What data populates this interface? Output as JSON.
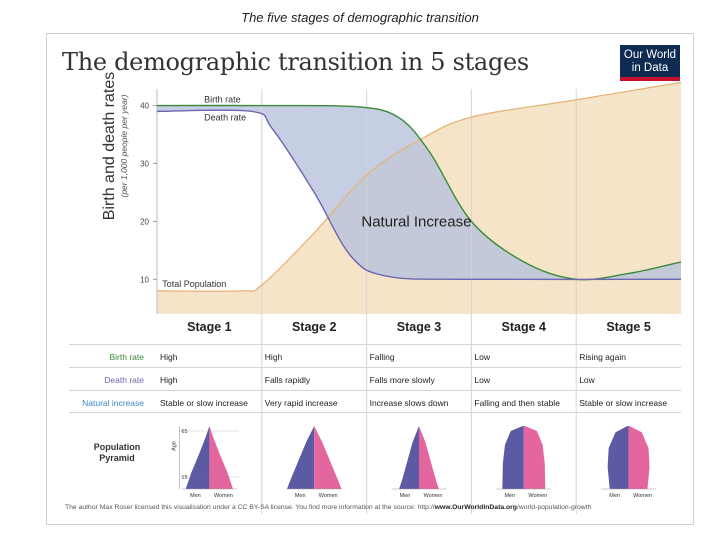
{
  "caption": "The five stages of demographic transition",
  "title": "The demographic transition in 5 stages",
  "logo": {
    "line1": "Our World",
    "line2": "in Data",
    "bg": "#0e2b52",
    "accent": "#c8102e"
  },
  "y_axis": {
    "title": "Birth and death rates",
    "subtitle": "(per 1,000 people per year)"
  },
  "chart_labels": {
    "birth_rate": "Birth rate",
    "death_rate": "Death rate",
    "population": "Total Population",
    "natural_increase": "Natural Increase"
  },
  "colors": {
    "birth": "#3b8a3b",
    "death": "#6a66b0",
    "population_fill": "#f6e4c9",
    "population_line": "#e4b47a",
    "increase_fill": "#b7c2dc",
    "men": "#5b5aa3",
    "women": "#e4669f"
  },
  "chart_data": {
    "type": "line",
    "title": "The demographic transition in 5 stages",
    "ylabel": "Birth and death rates (per 1,000 people per year)",
    "y_ticks": [
      10,
      20,
      30,
      40
    ],
    "ylim": [
      4,
      42
    ],
    "x_categories": [
      "Stage 1",
      "Stage 2",
      "Stage 3",
      "Stage 4",
      "Stage 5"
    ],
    "series": [
      {
        "name": "Birth rate",
        "values": [
          {
            "x": 0.0,
            "y": 40
          },
          {
            "x": 1.0,
            "y": 40
          },
          {
            "x": 1.9,
            "y": 39.8
          },
          {
            "x": 2.3,
            "y": 38
          },
          {
            "x": 2.6,
            "y": 32
          },
          {
            "x": 3.0,
            "y": 20
          },
          {
            "x": 3.5,
            "y": 13
          },
          {
            "x": 4.0,
            "y": 10
          },
          {
            "x": 4.5,
            "y": 11
          },
          {
            "x": 5.0,
            "y": 13
          }
        ]
      },
      {
        "name": "Death rate",
        "values": [
          {
            "x": 0.0,
            "y": 39
          },
          {
            "x": 0.9,
            "y": 39
          },
          {
            "x": 1.1,
            "y": 36
          },
          {
            "x": 1.5,
            "y": 25
          },
          {
            "x": 1.85,
            "y": 14
          },
          {
            "x": 2.2,
            "y": 10.5
          },
          {
            "x": 3.0,
            "y": 10
          },
          {
            "x": 5.0,
            "y": 10
          }
        ]
      },
      {
        "name": "Total Population",
        "values": [
          {
            "x": 0.0,
            "y": 8
          },
          {
            "x": 0.8,
            "y": 8
          },
          {
            "x": 1.0,
            "y": 9
          },
          {
            "x": 1.5,
            "y": 18
          },
          {
            "x": 2.0,
            "y": 28
          },
          {
            "x": 2.5,
            "y": 34
          },
          {
            "x": 3.0,
            "y": 38
          },
          {
            "x": 4.0,
            "y": 41
          },
          {
            "x": 5.0,
            "y": 44
          }
        ]
      }
    ],
    "annotations": [
      "Birth rate",
      "Death rate",
      "Total Population",
      "Natural Increase"
    ]
  },
  "stages": [
    {
      "name": "Stage 1",
      "birth": "High",
      "death": "High",
      "increase": "Stable or slow increase",
      "pyramid": "triangle"
    },
    {
      "name": "Stage 2",
      "birth": "High",
      "death": "Falls rapidly",
      "increase": "Very rapid increase",
      "pyramid": "wide-triangle"
    },
    {
      "name": "Stage 3",
      "birth": "Falling",
      "death": "Falls more slowly",
      "increase": "Increase slows down",
      "pyramid": "narrow-triangle"
    },
    {
      "name": "Stage 4",
      "birth": "Low",
      "death": "Low",
      "increase": "Falling and then stable",
      "pyramid": "dome"
    },
    {
      "name": "Stage 5",
      "birth": "Rising again",
      "death": "Low",
      "increase": "Stable or slow increase",
      "pyramid": "bell"
    }
  ],
  "row_labels": {
    "birth": "Birth rate",
    "death": "Death rate",
    "increase": "Natural increase"
  },
  "pyramid": {
    "label_line1": "Population",
    "label_line2": "Pyramid",
    "men": "Men",
    "women": "Women",
    "age": "Age",
    "age_65": "65",
    "age_15": "15"
  },
  "credit": {
    "text": "The author Max Roser licensed this visualisation under a CC BY-SA license. You find more information at the source: http://",
    "link": "www.OurWorldInData.org",
    "tail": "/world-population-growth"
  }
}
